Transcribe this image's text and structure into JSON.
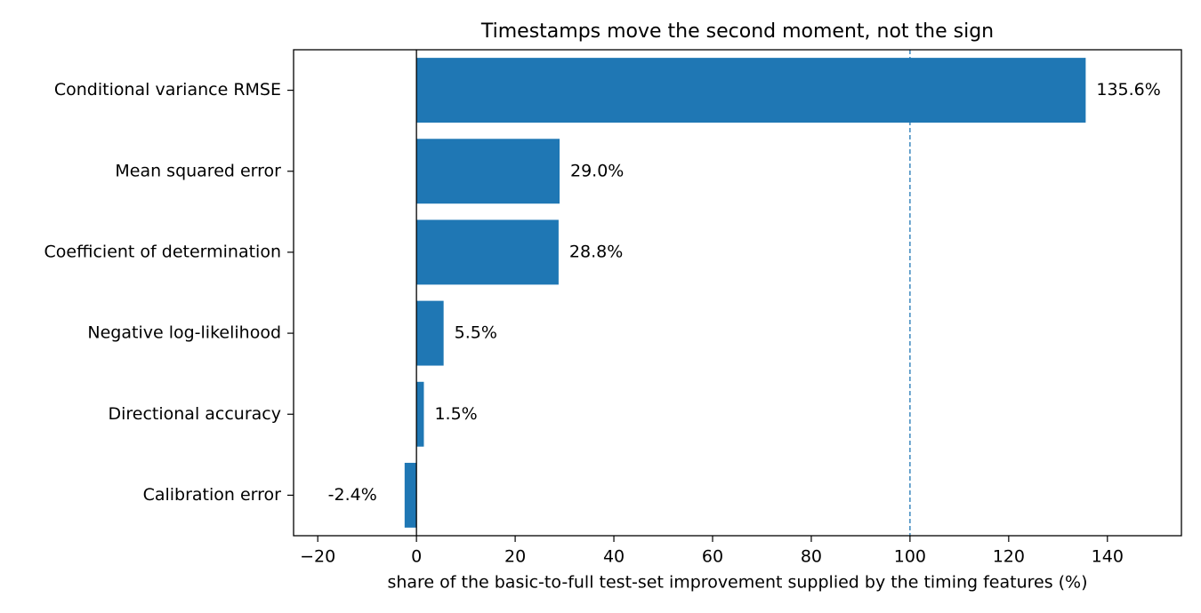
{
  "chart_data": {
    "type": "bar",
    "orientation": "horizontal",
    "title": "Timestamps move the second moment, not the sign",
    "x_label": "share of the basic-to-full test-set improvement supplied by the timing features (%)",
    "categories": [
      "Conditional variance RMSE",
      "Mean squared error",
      "Coefficient of determination",
      "Negative log-likelihood",
      "Directional accuracy",
      "Calibration error"
    ],
    "values": [
      135.6,
      29.0,
      28.8,
      5.5,
      1.5,
      -2.4
    ],
    "value_labels": [
      "135.6%",
      "29.0%",
      "28.8%",
      "5.5%",
      "1.5%",
      "-2.4%"
    ],
    "color": "#1f77b4",
    "reference_line": 100,
    "reference_color": "#1f77b4",
    "xlim": [
      -24.9,
      155.0
    ],
    "xticks": [
      {
        "value": -20,
        "label": "−20"
      },
      0,
      20,
      40,
      60,
      80,
      100,
      120,
      140
    ],
    "grid": false
  }
}
